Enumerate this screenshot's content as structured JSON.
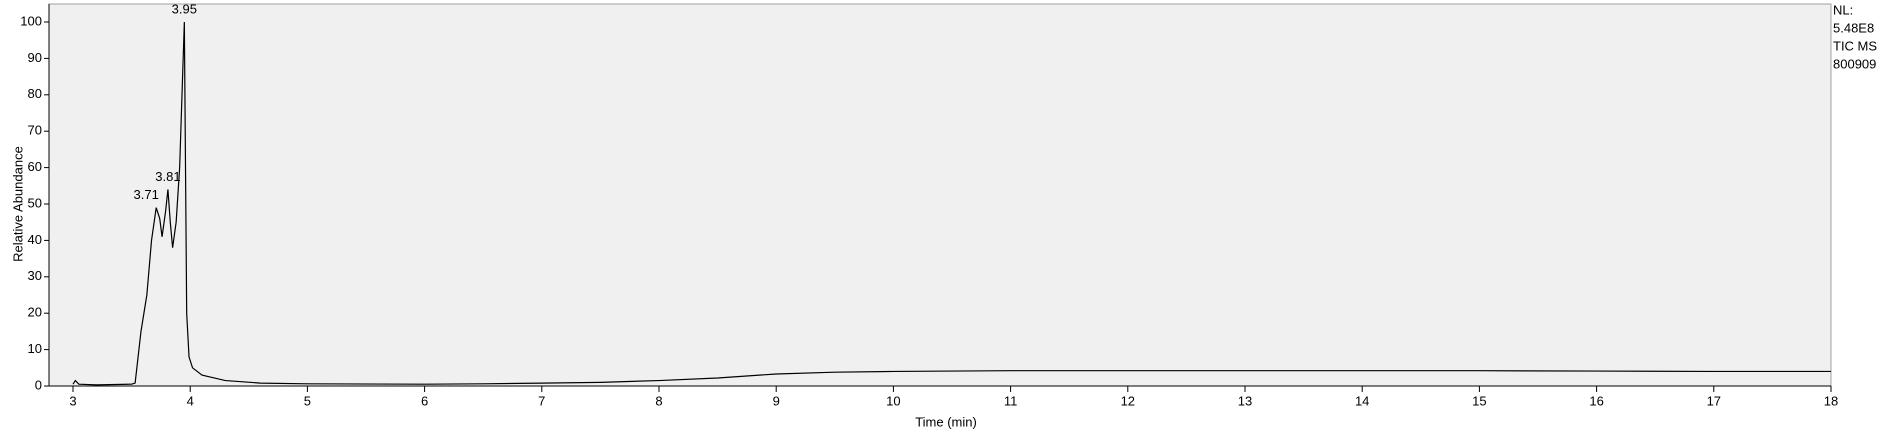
{
  "chart_data": {
    "type": "line",
    "xlabel": "Time (min)",
    "ylabel": "Relative Abundance",
    "info": [
      "NL:",
      "5.48E8",
      "TIC  MS",
      "800909"
    ],
    "x": [
      3.0,
      3.02,
      3.05,
      3.2,
      3.5,
      3.53,
      3.58,
      3.63,
      3.67,
      3.71,
      3.74,
      3.76,
      3.79,
      3.81,
      3.83,
      3.85,
      3.88,
      3.91,
      3.93,
      3.95,
      3.96,
      3.97,
      3.99,
      4.02,
      4.1,
      4.3,
      4.6,
      5,
      6,
      6.5,
      7,
      7.5,
      8,
      8.5,
      9,
      9.5,
      10,
      11,
      12,
      13,
      14,
      15,
      16,
      17,
      18
    ],
    "series": [
      {
        "color": "#000000",
        "values": [
          0.5,
          1.5,
          0.5,
          0.3,
          0.5,
          0.8,
          15,
          25,
          40,
          49,
          46,
          41,
          48,
          54,
          45,
          38,
          45,
          60,
          80,
          100,
          60,
          20,
          8,
          5,
          3,
          1.5,
          0.8,
          0.6,
          0.5,
          0.6,
          0.8,
          1,
          1.5,
          2.2,
          3.3,
          3.8,
          4,
          4.2,
          4.2,
          4.2,
          4.2,
          4.2,
          4.1,
          4,
          4
        ]
      }
    ],
    "peaks": [
      {
        "x": 3.71,
        "y": 49
      },
      {
        "x": 3.81,
        "y": 54
      },
      {
        "x": 3.95,
        "y": 100
      }
    ],
    "xlim": [
      3,
      18
    ],
    "xticks": [
      3,
      4,
      5,
      6,
      7,
      8,
      9,
      10,
      11,
      12,
      13,
      14,
      15,
      16,
      17,
      18
    ],
    "ylim": [
      0,
      100
    ],
    "yticks": [
      0,
      10,
      20,
      30,
      40,
      50,
      60,
      70,
      80,
      90,
      100
    ],
    "background": "#f0f0f0"
  }
}
